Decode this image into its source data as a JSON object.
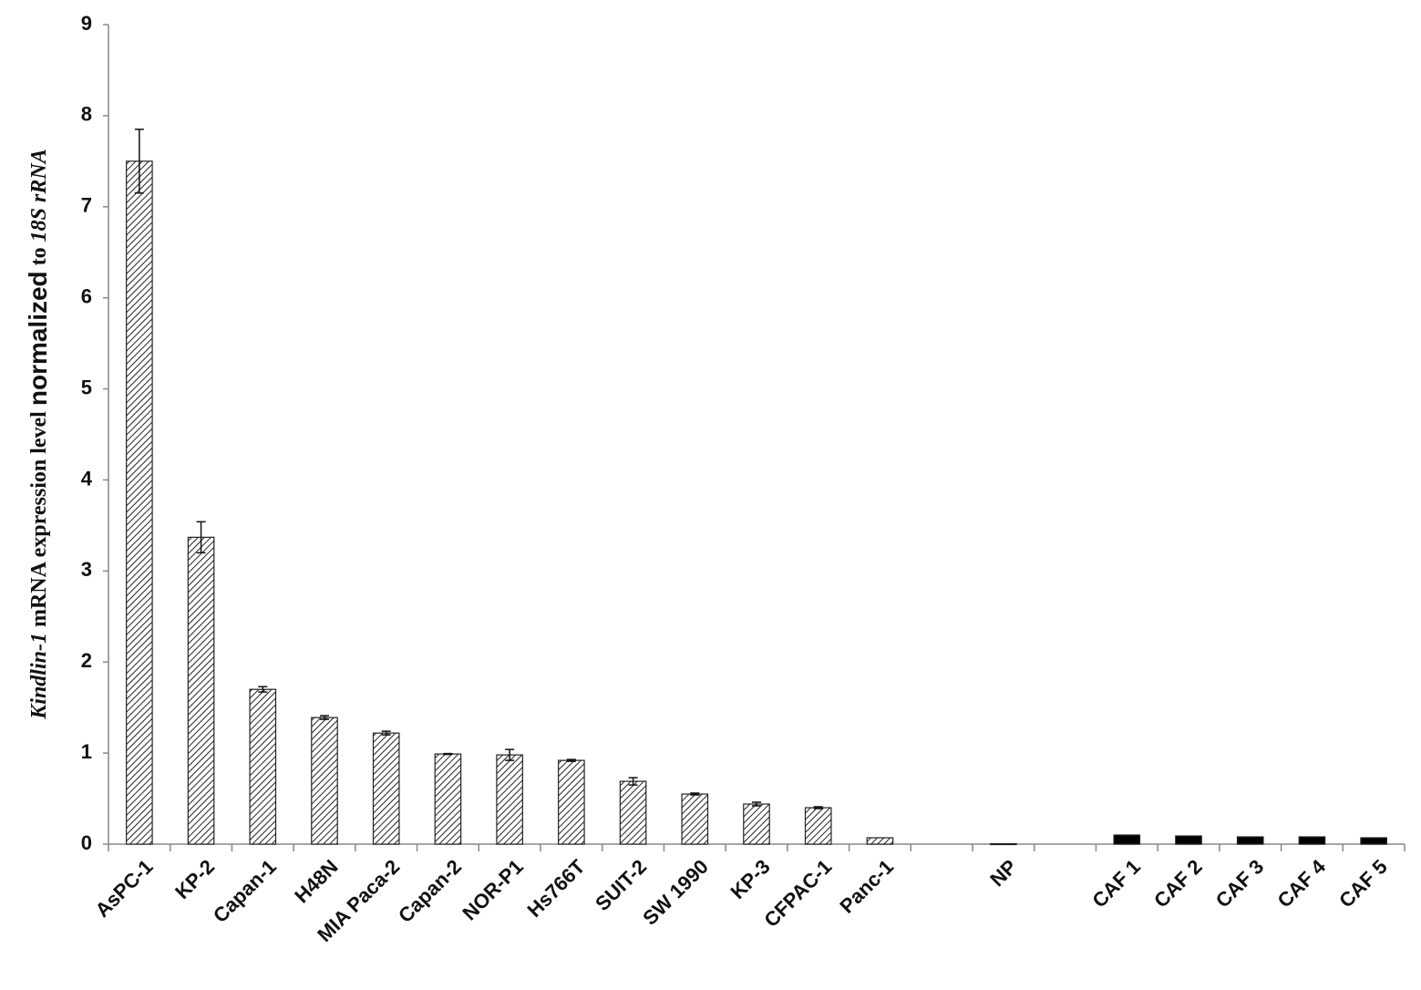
{
  "chart_data": {
    "type": "bar",
    "ylabel_parts": [
      "Kindlin-1",
      "mRNA expression level",
      "normalized",
      "to",
      "18S rRNA"
    ],
    "categories": [
      "AsPC-1",
      "KP-2",
      "Capan-1",
      "H48N",
      "MIA Paca-2",
      "Capan-2",
      "NOR-P1",
      "Hs766T",
      "SUIT-2",
      "SW 1990",
      "KP-3",
      "CFPAC-1",
      "Panc-1",
      null,
      "NP",
      null,
      "CAF 1",
      "CAF 2",
      "CAF 3",
      "CAF 4",
      "CAF 5"
    ],
    "values": [
      7.5,
      3.37,
      1.7,
      1.39,
      1.22,
      0.99,
      0.98,
      0.92,
      0.69,
      0.55,
      0.44,
      0.4,
      0.07,
      null,
      0.005,
      null,
      0.1,
      0.09,
      0.08,
      0.08,
      0.07
    ],
    "errors": [
      0.35,
      0.17,
      0.03,
      0.02,
      0.02,
      0.005,
      0.06,
      0.01,
      0.04,
      0.01,
      0.02,
      0.01,
      null,
      null,
      null,
      null,
      null,
      null,
      null,
      null,
      null
    ],
    "fills": [
      "hatched",
      "hatched",
      "hatched",
      "hatched",
      "hatched",
      "hatched",
      "hatched",
      "hatched",
      "hatched",
      "hatched",
      "hatched",
      "hatched",
      "hatched",
      null,
      "hatched",
      null,
      "#000000",
      "#000000",
      "#000000",
      "#000000",
      "#000000"
    ],
    "ylim": [
      0,
      9
    ],
    "yticks": [
      0,
      1,
      2,
      3,
      4,
      5,
      6,
      7,
      8,
      9
    ],
    "grid": false
  }
}
